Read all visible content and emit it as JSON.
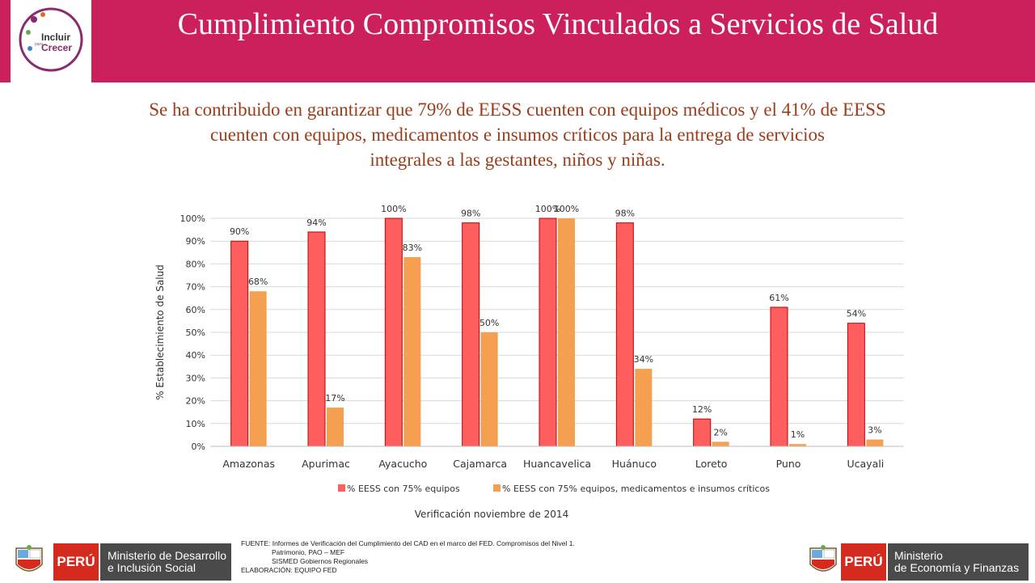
{
  "header": {
    "title": "Cumplimiento Compromisos Vinculados a Servicios de Salud",
    "logo_line1": "Incluir",
    "logo_line2": "Crecer",
    "logo_small": "para"
  },
  "subtitle": {
    "line1": "Se ha contribuido en garantizar que 79% de EESS cuenten con equipos médicos y el 41% de EESS",
    "line2": "cuenten con equipos, medicamentos e insumos críticos para la entrega de servicios",
    "line3": "integrales a las gestantes, niños y niñas."
  },
  "chart_data": {
    "type": "bar",
    "categories": [
      "Amazonas",
      "Apurimac",
      "Ayacucho",
      "Cajamarca",
      "Huancavelica",
      "Huánuco",
      "Loreto",
      "Puno",
      "Ucayali"
    ],
    "series": [
      {
        "name": "% EESS con 75% equipos",
        "values": [
          90,
          94,
          100,
          98,
          100,
          98,
          12,
          61,
          54
        ],
        "color": "#ff5e5e"
      },
      {
        "name": "% EESS con 75% equipos, medicamentos e insumos críticos",
        "values": [
          68,
          17,
          83,
          50,
          100,
          34,
          2,
          1,
          3
        ],
        "color": "#f5a050"
      }
    ],
    "ylabel": "% Establecimiento de Salud",
    "xlabel": "Verificación noviembre de 2014",
    "ylim": [
      0,
      100
    ],
    "yticks": [
      0,
      10,
      20,
      30,
      40,
      50,
      60,
      70,
      80,
      90,
      100
    ],
    "grid": true,
    "legend": "bottom"
  },
  "source": {
    "line1": "FUENTE: Informes de Verificación del Cumplimiento del CAD en el marco del FED. Compromisos del Nivel 1.",
    "line2": "Patrimonio, PAO – MEF",
    "line3": "SISMED Gobiernos Regionales",
    "line4": "ELABORACIÓN: EQUIPO FED"
  },
  "footer": {
    "left_peru": "PERÚ",
    "left_ministry_line1": "Ministerio de Desarrollo",
    "left_ministry_line2": "e Inclusión Social",
    "right_peru": "PERÚ",
    "right_ministry_line1": "Ministerio",
    "right_ministry_line2": "de Economía y Finanzas"
  }
}
